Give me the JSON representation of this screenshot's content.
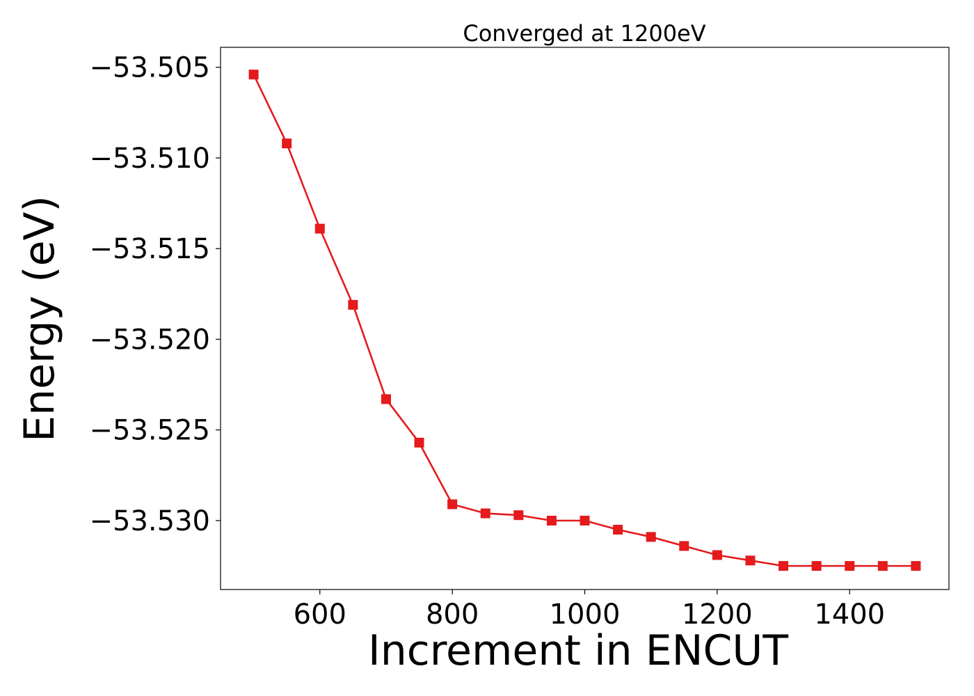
{
  "chart_data": {
    "type": "line",
    "title": "Converged at 1200eV",
    "xlabel": "Increment in ENCUT",
    "ylabel": "Energy (eV)",
    "xlim": [
      450,
      1550
    ],
    "ylim": [
      -53.5338,
      -53.5039
    ],
    "x_ticks": [
      600,
      800,
      1000,
      1200,
      1400
    ],
    "x_tick_labels": [
      "600",
      "800",
      "1000",
      "1200",
      "1400"
    ],
    "y_ticks": [
      -53.505,
      -53.51,
      -53.515,
      -53.52,
      -53.525,
      -53.53
    ],
    "y_tick_labels": [
      "−53.505",
      "−53.510",
      "−53.515",
      "−53.520",
      "−53.525",
      "−53.530"
    ],
    "grid": false,
    "series": [
      {
        "color": "#e41a1c",
        "marker": "square",
        "x": [
          500,
          550,
          600,
          650,
          700,
          750,
          800,
          850,
          900,
          950,
          1000,
          1050,
          1100,
          1150,
          1200,
          1250,
          1300,
          1350,
          1400,
          1450,
          1500
        ],
        "values": [
          -53.5054,
          -53.5092,
          -53.5139,
          -53.5181,
          -53.5233,
          -53.5257,
          -53.5291,
          -53.5296,
          -53.5297,
          -53.53,
          -53.53,
          -53.5305,
          -53.5309,
          -53.5314,
          -53.5319,
          -53.5322,
          -53.5325,
          -53.5325,
          -53.5325,
          -53.5325,
          -53.5325
        ]
      }
    ]
  }
}
